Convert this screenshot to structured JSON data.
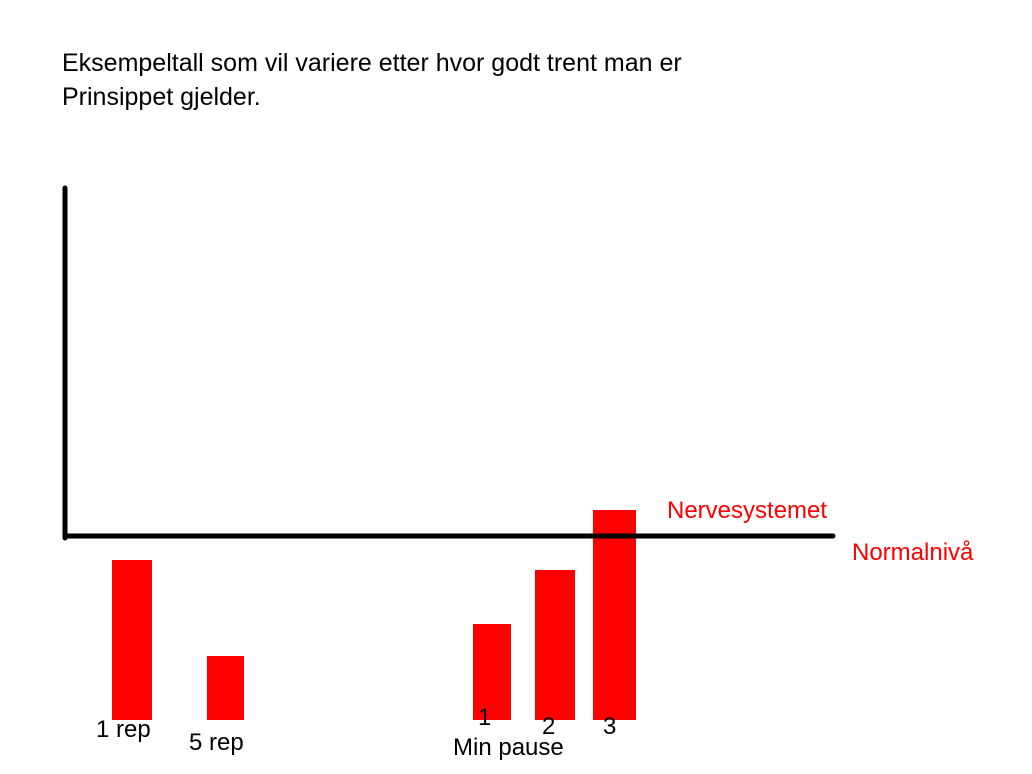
{
  "chart_data": {
    "type": "bar",
    "title_lines": [
      "Eksempeltall som vil variere etter hvor godt trent man er",
      "Prinsippet gjelder."
    ],
    "baseline_labels": [
      "Nervesystemet",
      "Normalnivå"
    ],
    "group_label": "Min pause",
    "categories": [
      "1 rep",
      "5 rep",
      "1",
      "2",
      "3"
    ],
    "bars": [
      {
        "label": "1 rep",
        "bottom": -4.0,
        "top": 0.0
      },
      {
        "label": "5 rep",
        "bottom": -4.0,
        "top": -2.4
      },
      {
        "label": "1",
        "bottom": -4.0,
        "top": -1.6
      },
      {
        "label": "2",
        "bottom": -4.0,
        "top": -0.25
      },
      {
        "label": "3",
        "bottom": -4.0,
        "top": 1.25
      }
    ],
    "ylim": [
      -4.5,
      9.0
    ],
    "baseline": 0,
    "colors": {
      "bar": "#ff0000",
      "axis": "#000000",
      "annotation": "#ff0000",
      "text": "#000000"
    }
  }
}
